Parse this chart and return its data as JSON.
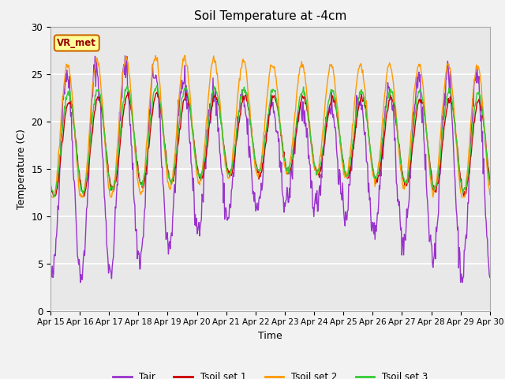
{
  "title": "Soil Temperature at -4cm",
  "xlabel": "Time",
  "ylabel": "Temperature (C)",
  "ylim": [
    0,
    30
  ],
  "background_color": "#e8e8e8",
  "fig_facecolor": "#f2f2f2",
  "colors": {
    "Tair": "#9933cc",
    "Tsoil set 1": "#cc0000",
    "Tsoil set 2": "#ff9900",
    "Tsoil set 3": "#33cc33"
  },
  "annotation_text": "VR_met",
  "annotation_color": "#990000",
  "annotation_bg": "#ffff99",
  "annotation_border": "#cc6600",
  "tick_labels": [
    "Apr 15",
    "Apr 16",
    "Apr 17",
    "Apr 18",
    "Apr 19",
    "Apr 20",
    "Apr 21",
    "Apr 22",
    "Apr 23",
    "Apr 24",
    "Apr 25",
    "Apr 26",
    "Apr 27",
    "Apr 28",
    "Apr 29",
    "Apr 30"
  ],
  "yticks": [
    0,
    5,
    10,
    15,
    20,
    25,
    30
  ],
  "legend_entries": [
    "Tair",
    "Tsoil set 1",
    "Tsoil set 2",
    "Tsoil set 3"
  ]
}
